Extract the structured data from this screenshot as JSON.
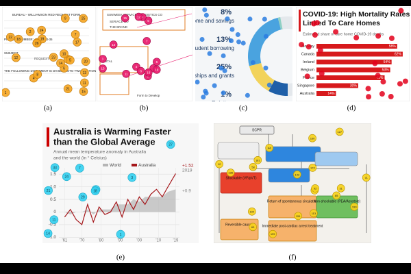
{
  "captions": [
    "(a)",
    "(b)",
    "(c)",
    "(d)",
    "(e)",
    "(f)"
  ],
  "panel_a": {
    "lines": [
      "BUREAU - WILLIAMSON RED REQUEST FORM",
      "PROJECT NUMBER:",
      "1913-35",
      "SUBJECT",
      "REQUEST",
      "THE FOLLOWING DOCUMENT IS DIVIDED INTO TWO SECTIONS."
    ],
    "markers": [
      "1",
      "2",
      "3",
      "4",
      "5",
      "6",
      "7",
      "8",
      "9",
      "10",
      "11",
      "12",
      "13",
      "14",
      "15",
      "16",
      "17",
      "18",
      "19",
      "20",
      "21",
      "22",
      "23",
      "24",
      "25",
      "26"
    ]
  },
  "panel_b": {
    "lines": [
      "SUNWEEK SERVICE & LOGISTICS CO",
      "SERVICE CO",
      "THE BRAND",
      "TOTAL",
      "Form to Develop"
    ],
    "markers": [
      "1",
      "2",
      "3",
      "4",
      "5",
      "6",
      "7",
      "8",
      "9",
      "10",
      "11",
      "12",
      "13",
      "14",
      "15",
      "16"
    ]
  },
  "panel_f": {
    "nodes": [
      "SCPR",
      "Shockable (VF/pVT)",
      "Return of spontaneous circulation",
      "Non-shockable (PEA/Asystole)",
      "Reversible causes",
      "Immediate post-cardiac arrest treatment"
    ],
    "markers": [
      "12",
      "27",
      "31",
      "44",
      "58",
      "63",
      "71",
      "85",
      "92",
      "104",
      "113",
      "127",
      "136",
      "142",
      "151",
      "160",
      "172",
      "181",
      "190",
      "199"
    ]
  },
  "chart_data": [
    {
      "type": "pie",
      "categories": [
        "Student income and savings",
        "Student borrowing",
        "Scholarships and grants",
        "Relatives"
      ],
      "values": [
        8,
        13,
        25,
        1
      ],
      "value_labels": [
        "8%",
        "13%",
        "25%",
        "1%"
      ],
      "colors": [
        "#1f5fa8",
        "#f2d35b",
        "#4aa3df",
        "#8fd0c4"
      ]
    },
    {
      "type": "hbar",
      "title": [
        "COVID-19: High Mortality Rates",
        "Linked To Care Homes"
      ],
      "subtitle": "Estimated share of care home COVID-19 deaths",
      "categories": [
        "Norway",
        "Canada",
        "Ireland",
        "Belgium",
        "France",
        "Singapore",
        "Australia"
      ],
      "values": [
        58,
        62,
        54,
        53,
        49,
        30,
        14
      ],
      "value_labels": [
        "58%",
        "62%",
        "54%",
        "53%",
        "49%",
        "30%",
        "14%"
      ],
      "xlim": [
        0,
        65
      ],
      "color": "#d7191c"
    },
    {
      "type": "line",
      "title": [
        "Australia is Warming Faster",
        "than the Global Average"
      ],
      "subtitle": [
        "Annual mean temperature anomaly in Australia",
        "and the world (in ° Celsius)"
      ],
      "x": [
        1961,
        1964,
        1967,
        1970,
        1973,
        1976,
        1979,
        1982,
        1985,
        1988,
        1991,
        1994,
        1997,
        2000,
        2003,
        2006,
        2009,
        2012,
        2015,
        2019
      ],
      "series": [
        {
          "name": "World",
          "color": "#b5b5b5",
          "values": [
            0.0,
            -0.1,
            0.0,
            0.0,
            0.1,
            -0.1,
            0.1,
            0.1,
            0.1,
            0.3,
            0.3,
            0.3,
            0.5,
            0.4,
            0.6,
            0.6,
            0.6,
            0.6,
            0.8,
            0.9
          ]
        },
        {
          "name": "Australia",
          "color": "#a4161a",
          "values": [
            -0.2,
            0.1,
            -0.3,
            -0.5,
            0.3,
            -0.4,
            0.2,
            -0.1,
            0.0,
            0.4,
            -0.2,
            0.5,
            0.1,
            0.6,
            0.3,
            0.7,
            0.9,
            0.6,
            1.0,
            1.52
          ]
        }
      ],
      "xlim": [
        1958,
        2021
      ],
      "ylim": [
        -1.1,
        1.75
      ],
      "yticks": [
        -0.5,
        {
          "value": 0,
          "label": "0"
        },
        0.5,
        {
          "value": 1,
          "label": "1.0"
        },
        1.5,
        {
          "value": -1,
          "label": "-1.0"
        }
      ],
      "xticks": [
        {
          "value": 1961,
          "label": "'61"
        },
        {
          "value": 1970,
          "label": "'70"
        },
        {
          "value": 1980,
          "label": "'80"
        },
        {
          "value": 1990,
          "label": "'90"
        },
        {
          "value": 2000,
          "label": "'00"
        },
        {
          "value": 2010,
          "label": "'10"
        },
        {
          "value": 2019,
          "label": "'19"
        }
      ],
      "grid": true,
      "annotations": [
        "+1.52",
        "2019",
        "+0.9"
      ],
      "markers": [
        "14",
        "33",
        "29",
        "1",
        "21",
        "32",
        "11",
        "27",
        "3",
        "18",
        "24",
        "7"
      ]
    }
  ]
}
